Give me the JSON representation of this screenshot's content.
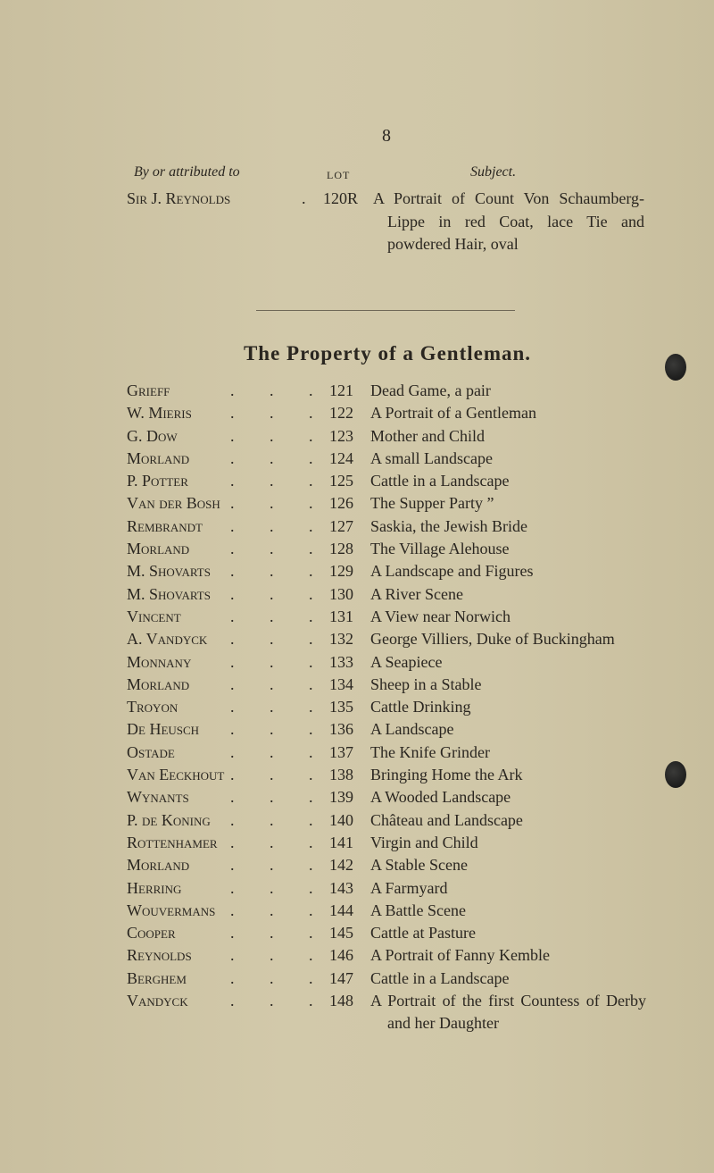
{
  "page_number": "8",
  "columns": {
    "artist": "By or attributed to",
    "lot": "LOT",
    "subject": "Subject."
  },
  "first_entry": {
    "artist": "Sir J. Reynolds",
    "lot": "120R",
    "subject": "A Portrait of Count Von Schaumberg-Lippe in red Coat, lace Tie and powdered Hair, oval"
  },
  "section_title": "The Property of a Gentleman.",
  "entries": [
    {
      "artist": "Grieff",
      "lot": "121",
      "subject": "Dead Game, a pair"
    },
    {
      "artist": "W. Mieris",
      "lot": "122",
      "subject": "A Portrait of a Gentleman"
    },
    {
      "artist": "G. Dow",
      "lot": "123",
      "subject": "Mother and Child"
    },
    {
      "artist": "Morland",
      "lot": "124",
      "subject": "A small Landscape"
    },
    {
      "artist": "P. Potter",
      "lot": "125",
      "subject": "Cattle in a Landscape"
    },
    {
      "artist": "Van der Bosh",
      "lot": "126",
      "subject": "The Supper Party ”"
    },
    {
      "artist": "Rembrandt",
      "lot": "127",
      "subject": "Saskia, the Jewish Bride"
    },
    {
      "artist": "Morland",
      "lot": "128",
      "subject": "The Village Alehouse"
    },
    {
      "artist": "M. Shovarts",
      "lot": "129",
      "subject": "A Landscape and Figures"
    },
    {
      "artist": "M. Shovarts",
      "lot": "130",
      "subject": "A River Scene"
    },
    {
      "artist": "Vincent",
      "lot": "131",
      "subject": "A View near Norwich"
    },
    {
      "artist": "A. Vandyck",
      "lot": "132",
      "subject": "George Villiers, Duke of Buckingham"
    },
    {
      "artist": "Monnany",
      "lot": "133",
      "subject": "A Seapiece"
    },
    {
      "artist": "Morland",
      "lot": "134",
      "subject": "Sheep in a Stable"
    },
    {
      "artist": "Troyon",
      "lot": "135",
      "subject": "Cattle Drinking"
    },
    {
      "artist": "De Heusch",
      "lot": "136",
      "subject": "A Landscape"
    },
    {
      "artist": "Ostade",
      "lot": "137",
      "subject": "The Knife Grinder"
    },
    {
      "artist": "Van Eeckhout",
      "lot": "138",
      "subject": "Bringing Home the Ark"
    },
    {
      "artist": "Wynants",
      "lot": "139",
      "subject": "A Wooded Landscape"
    },
    {
      "artist": "P. de Koning",
      "lot": "140",
      "subject": "Château and Landscape"
    },
    {
      "artist": "Rottenhamer",
      "lot": "141",
      "subject": "Virgin and Child"
    },
    {
      "artist": "Morland",
      "lot": "142",
      "subject": "A Stable Scene"
    },
    {
      "artist": "Herring",
      "lot": "143",
      "subject": "A Farmyard"
    },
    {
      "artist": "Wouvermans",
      "lot": "144",
      "subject": "A Battle Scene"
    },
    {
      "artist": "Cooper",
      "lot": "145",
      "subject": "Cattle at Pasture"
    },
    {
      "artist": "Reynolds",
      "lot": "146",
      "subject": "A Portrait of Fanny Kemble"
    },
    {
      "artist": "Berghem",
      "lot": "147",
      "subject": "Cattle in a Landscape"
    },
    {
      "artist": "Vandyck",
      "lot": "148",
      "subject": "A Portrait of the first Countess of Derby and her Daughter"
    }
  ]
}
